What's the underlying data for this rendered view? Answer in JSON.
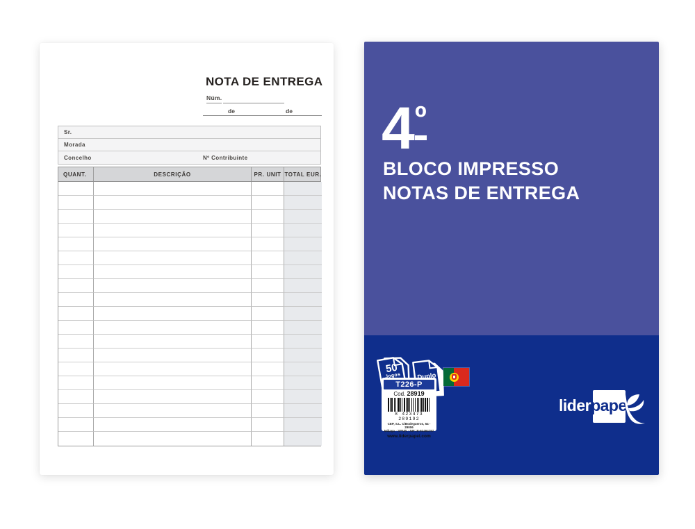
{
  "form": {
    "title": "NOTA DE ENTREGA",
    "num_label": "Núm.",
    "date_de_1": "de",
    "date_de_2": "de",
    "fields": [
      "Sr.",
      "Morada",
      "Concelho"
    ],
    "contribuinte_label": "Nº Contribuinte",
    "table": {
      "columns": [
        "QUANT.",
        "DESCRIÇÃO",
        "PR. UNIT",
        "TOTAL EUR."
      ],
      "empty_rows": 19
    }
  },
  "cover": {
    "size_digit": "4",
    "size_ordinal": "º",
    "title_line1": "BLOCO IMPRESSO",
    "title_line2": "NOTAS DE ENTREGA",
    "badges": {
      "jogos_count": "50",
      "jogos_label": "Jogos",
      "duplo_label": "Duplo"
    },
    "label": {
      "ref": "T226-P",
      "cod_label": "Cod.",
      "cod_value": "28919",
      "barcode_digits": "8 423473 289192",
      "address_line1": "CEP, S.L. C/Bodegueros, 54 - 29006",
      "address_line2": "Málaga - SPAIN - NIF: B-92464797",
      "website": "www.liderpapel.com"
    },
    "brand": {
      "part1": "lider",
      "part2": "papel"
    },
    "colors": {
      "purple": "#4A519D",
      "navy": "#0F2E8C",
      "label_bar": "#1C3A99",
      "flag_green": "#046A38",
      "flag_red": "#DA291C",
      "flag_yellow": "#FFD200"
    },
    "barcode_pattern": [
      2,
      1,
      1,
      1,
      2,
      2,
      1,
      1,
      1,
      2,
      1,
      1,
      2,
      1,
      1,
      1,
      1,
      2,
      2,
      1,
      1,
      1,
      2,
      1,
      1,
      2,
      1,
      1,
      1,
      2,
      1,
      2,
      1,
      1,
      1,
      2,
      1,
      1,
      2,
      1,
      1,
      1,
      2,
      1,
      2,
      1,
      1,
      1
    ]
  }
}
